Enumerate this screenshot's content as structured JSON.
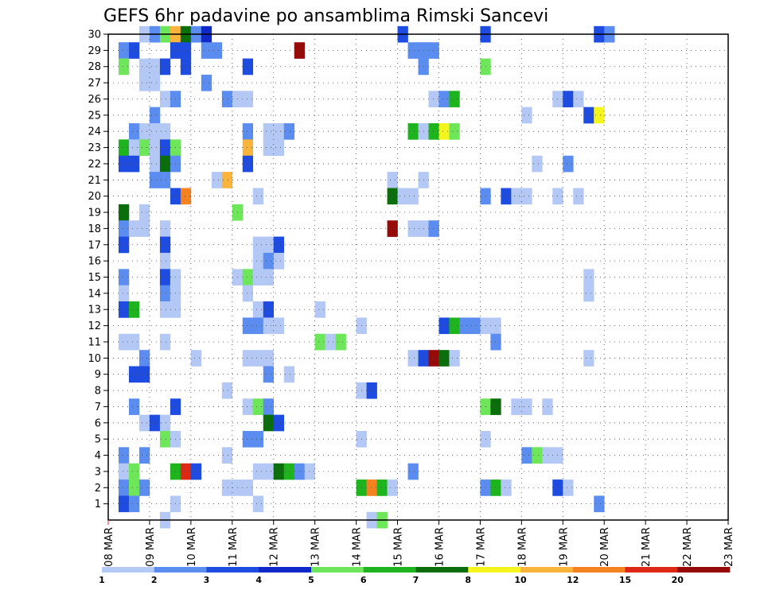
{
  "chart_data": {
    "type": "heatmap",
    "title": "GEFS 6hr padavine po ansamblima Rimski Sancevi",
    "x_tick_labels": [
      "08 MAR",
      "09 MAR",
      "10 MAR",
      "11 MAR",
      "12 MAR",
      "13 MAR",
      "14 MAR",
      "15 MAR",
      "16 MAR",
      "17 MAR",
      "18 MAR",
      "19 MAR",
      "20 MAR",
      "21 MAR",
      "22 MAR",
      "23 MAR"
    ],
    "y_tick_labels": [
      "1",
      "2",
      "3",
      "4",
      "5",
      "6",
      "7",
      "8",
      "9",
      "10",
      "11",
      "12",
      "13",
      "14",
      "15",
      "16",
      "17",
      "18",
      "19",
      "20",
      "21",
      "22",
      "23",
      "24",
      "25",
      "26",
      "27",
      "28",
      "29",
      "30"
    ],
    "x_range": [
      "08 MAR 00",
      "23 MAR 00"
    ],
    "y_range": [
      0,
      30
    ],
    "x_step_hours": 6,
    "grid": true,
    "colorbar": {
      "labels": [
        "1",
        "2",
        "3",
        "4",
        "5",
        "6",
        "7",
        "8",
        "10",
        "12",
        "15",
        "20"
      ],
      "colors": [
        "#b4c8f5",
        "#5b8cf0",
        "#1e4be0",
        "#0f28c8",
        "#6ee65a",
        "#1eb41e",
        "#0a6e0a",
        "#f5f51e",
        "#fab43c",
        "#f5821e",
        "#dc2814",
        "#960a0a"
      ]
    },
    "cells": [
      [
        30,
        3,
        0
      ],
      [
        30,
        4,
        1
      ],
      [
        30,
        5,
        4
      ],
      [
        30,
        6,
        8
      ],
      [
        30,
        7,
        6
      ],
      [
        30,
        8,
        1
      ],
      [
        30,
        9,
        3
      ],
      [
        30,
        28,
        2
      ],
      [
        30,
        36,
        2
      ],
      [
        30,
        47,
        2
      ],
      [
        30,
        48,
        1
      ],
      [
        29,
        1,
        1
      ],
      [
        29,
        2,
        2
      ],
      [
        29,
        6,
        2
      ],
      [
        29,
        7,
        2
      ],
      [
        29,
        9,
        1
      ],
      [
        29,
        10,
        1
      ],
      [
        29,
        18,
        11
      ],
      [
        29,
        29,
        1
      ],
      [
        29,
        30,
        1
      ],
      [
        29,
        31,
        1
      ],
      [
        28,
        1,
        4
      ],
      [
        28,
        3,
        0
      ],
      [
        28,
        4,
        0
      ],
      [
        28,
        5,
        2
      ],
      [
        28,
        7,
        2
      ],
      [
        28,
        13,
        2
      ],
      [
        28,
        30,
        1
      ],
      [
        28,
        36,
        4
      ],
      [
        27,
        3,
        0
      ],
      [
        27,
        4,
        0
      ],
      [
        27,
        9,
        1
      ],
      [
        26,
        5,
        0
      ],
      [
        26,
        6,
        1
      ],
      [
        26,
        11,
        1
      ],
      [
        26,
        12,
        0
      ],
      [
        26,
        13,
        0
      ],
      [
        26,
        31,
        0
      ],
      [
        26,
        32,
        1
      ],
      [
        26,
        33,
        5
      ],
      [
        26,
        43,
        0
      ],
      [
        26,
        44,
        2
      ],
      [
        26,
        45,
        0
      ],
      [
        25,
        4,
        1
      ],
      [
        25,
        40,
        0
      ],
      [
        25,
        46,
        2
      ],
      [
        25,
        47,
        7
      ],
      [
        24,
        2,
        1
      ],
      [
        24,
        3,
        0
      ],
      [
        24,
        4,
        0
      ],
      [
        24,
        5,
        0
      ],
      [
        24,
        13,
        1
      ],
      [
        24,
        15,
        0
      ],
      [
        24,
        16,
        0
      ],
      [
        24,
        17,
        1
      ],
      [
        24,
        29,
        5
      ],
      [
        24,
        30,
        0
      ],
      [
        24,
        31,
        5
      ],
      [
        24,
        32,
        7
      ],
      [
        24,
        33,
        4
      ],
      [
        23,
        1,
        5
      ],
      [
        23,
        2,
        0
      ],
      [
        23,
        3,
        4
      ],
      [
        23,
        4,
        0
      ],
      [
        23,
        5,
        2
      ],
      [
        23,
        6,
        4
      ],
      [
        23,
        13,
        8
      ],
      [
        23,
        15,
        0
      ],
      [
        23,
        16,
        0
      ],
      [
        22,
        1,
        2
      ],
      [
        22,
        2,
        2
      ],
      [
        22,
        4,
        0
      ],
      [
        22,
        5,
        6
      ],
      [
        22,
        6,
        1
      ],
      [
        22,
        13,
        2
      ],
      [
        22,
        41,
        0
      ],
      [
        22,
        44,
        1
      ],
      [
        21,
        4,
        1
      ],
      [
        21,
        5,
        1
      ],
      [
        21,
        10,
        0
      ],
      [
        21,
        11,
        8
      ],
      [
        21,
        27,
        0
      ],
      [
        21,
        30,
        0
      ],
      [
        20,
        6,
        2
      ],
      [
        20,
        7,
        9
      ],
      [
        20,
        14,
        0
      ],
      [
        20,
        27,
        6
      ],
      [
        20,
        28,
        0
      ],
      [
        20,
        29,
        0
      ],
      [
        20,
        36,
        1
      ],
      [
        20,
        38,
        2
      ],
      [
        20,
        39,
        0
      ],
      [
        20,
        40,
        0
      ],
      [
        20,
        43,
        0
      ],
      [
        20,
        45,
        0
      ],
      [
        19,
        1,
        6
      ],
      [
        19,
        3,
        0
      ],
      [
        19,
        12,
        4
      ],
      [
        18,
        1,
        1
      ],
      [
        18,
        2,
        0
      ],
      [
        18,
        3,
        0
      ],
      [
        18,
        5,
        0
      ],
      [
        18,
        27,
        11
      ],
      [
        18,
        29,
        0
      ],
      [
        18,
        30,
        0
      ],
      [
        18,
        31,
        1
      ],
      [
        17,
        1,
        2
      ],
      [
        17,
        5,
        2
      ],
      [
        17,
        14,
        0
      ],
      [
        17,
        15,
        0
      ],
      [
        17,
        16,
        2
      ],
      [
        16,
        5,
        0
      ],
      [
        16,
        14,
        0
      ],
      [
        16,
        15,
        1
      ],
      [
        16,
        16,
        0
      ],
      [
        15,
        1,
        1
      ],
      [
        15,
        5,
        2
      ],
      [
        15,
        6,
        0
      ],
      [
        15,
        12,
        0
      ],
      [
        15,
        13,
        4
      ],
      [
        15,
        14,
        0
      ],
      [
        15,
        15,
        0
      ],
      [
        15,
        46,
        0
      ],
      [
        14,
        1,
        0
      ],
      [
        14,
        5,
        1
      ],
      [
        14,
        6,
        0
      ],
      [
        14,
        13,
        0
      ],
      [
        14,
        46,
        0
      ],
      [
        13,
        1,
        2
      ],
      [
        13,
        2,
        5
      ],
      [
        13,
        5,
        0
      ],
      [
        13,
        6,
        0
      ],
      [
        13,
        14,
        0
      ],
      [
        13,
        15,
        2
      ],
      [
        13,
        20,
        0
      ],
      [
        12,
        13,
        1
      ],
      [
        12,
        14,
        1
      ],
      [
        12,
        15,
        0
      ],
      [
        12,
        16,
        0
      ],
      [
        12,
        24,
        0
      ],
      [
        12,
        32,
        2
      ],
      [
        12,
        33,
        5
      ],
      [
        12,
        34,
        1
      ],
      [
        12,
        35,
        1
      ],
      [
        12,
        36,
        0
      ],
      [
        12,
        37,
        0
      ],
      [
        11,
        1,
        0
      ],
      [
        11,
        2,
        0
      ],
      [
        11,
        5,
        0
      ],
      [
        11,
        20,
        4
      ],
      [
        11,
        21,
        0
      ],
      [
        11,
        22,
        4
      ],
      [
        11,
        37,
        1
      ],
      [
        10,
        3,
        1
      ],
      [
        10,
        8,
        0
      ],
      [
        10,
        13,
        0
      ],
      [
        10,
        14,
        0
      ],
      [
        10,
        15,
        0
      ],
      [
        10,
        29,
        0
      ],
      [
        10,
        30,
        2
      ],
      [
        10,
        31,
        11
      ],
      [
        10,
        32,
        6
      ],
      [
        10,
        33,
        0
      ],
      [
        10,
        46,
        0
      ],
      [
        9,
        2,
        2
      ],
      [
        9,
        3,
        2
      ],
      [
        9,
        15,
        1
      ],
      [
        9,
        17,
        0
      ],
      [
        8,
        11,
        0
      ],
      [
        8,
        24,
        0
      ],
      [
        8,
        25,
        2
      ],
      [
        7,
        2,
        1
      ],
      [
        7,
        6,
        2
      ],
      [
        7,
        13,
        0
      ],
      [
        7,
        14,
        4
      ],
      [
        7,
        15,
        1
      ],
      [
        7,
        36,
        4
      ],
      [
        7,
        37,
        6
      ],
      [
        7,
        39,
        0
      ],
      [
        7,
        40,
        0
      ],
      [
        7,
        42,
        0
      ],
      [
        6,
        3,
        0
      ],
      [
        6,
        4,
        2
      ],
      [
        6,
        5,
        0
      ],
      [
        6,
        15,
        6
      ],
      [
        6,
        16,
        2
      ],
      [
        5,
        5,
        4
      ],
      [
        5,
        6,
        0
      ],
      [
        5,
        13,
        1
      ],
      [
        5,
        14,
        1
      ],
      [
        5,
        24,
        0
      ],
      [
        5,
        36,
        0
      ],
      [
        4,
        1,
        1
      ],
      [
        4,
        3,
        1
      ],
      [
        4,
        11,
        0
      ],
      [
        4,
        40,
        1
      ],
      [
        4,
        41,
        4
      ],
      [
        4,
        42,
        0
      ],
      [
        4,
        43,
        0
      ],
      [
        3,
        1,
        0
      ],
      [
        3,
        2,
        4
      ],
      [
        3,
        6,
        5
      ],
      [
        3,
        7,
        10
      ],
      [
        3,
        8,
        2
      ],
      [
        3,
        14,
        0
      ],
      [
        3,
        15,
        0
      ],
      [
        3,
        16,
        6
      ],
      [
        3,
        17,
        5
      ],
      [
        3,
        18,
        1
      ],
      [
        3,
        19,
        0
      ],
      [
        3,
        29,
        1
      ],
      [
        2,
        1,
        1
      ],
      [
        2,
        2,
        4
      ],
      [
        2,
        3,
        1
      ],
      [
        2,
        11,
        0
      ],
      [
        2,
        12,
        0
      ],
      [
        2,
        13,
        0
      ],
      [
        2,
        24,
        5
      ],
      [
        2,
        25,
        9
      ],
      [
        2,
        26,
        5
      ],
      [
        2,
        27,
        0
      ],
      [
        2,
        36,
        1
      ],
      [
        2,
        37,
        5
      ],
      [
        2,
        38,
        0
      ],
      [
        2,
        43,
        2
      ],
      [
        2,
        44,
        0
      ],
      [
        1,
        1,
        2
      ],
      [
        1,
        2,
        1
      ],
      [
        1,
        6,
        0
      ],
      [
        1,
        14,
        0
      ],
      [
        1,
        47,
        1
      ],
      [
        0,
        25,
        0
      ],
      [
        0,
        26,
        4
      ],
      [
        0,
        5,
        0
      ]
    ]
  }
}
